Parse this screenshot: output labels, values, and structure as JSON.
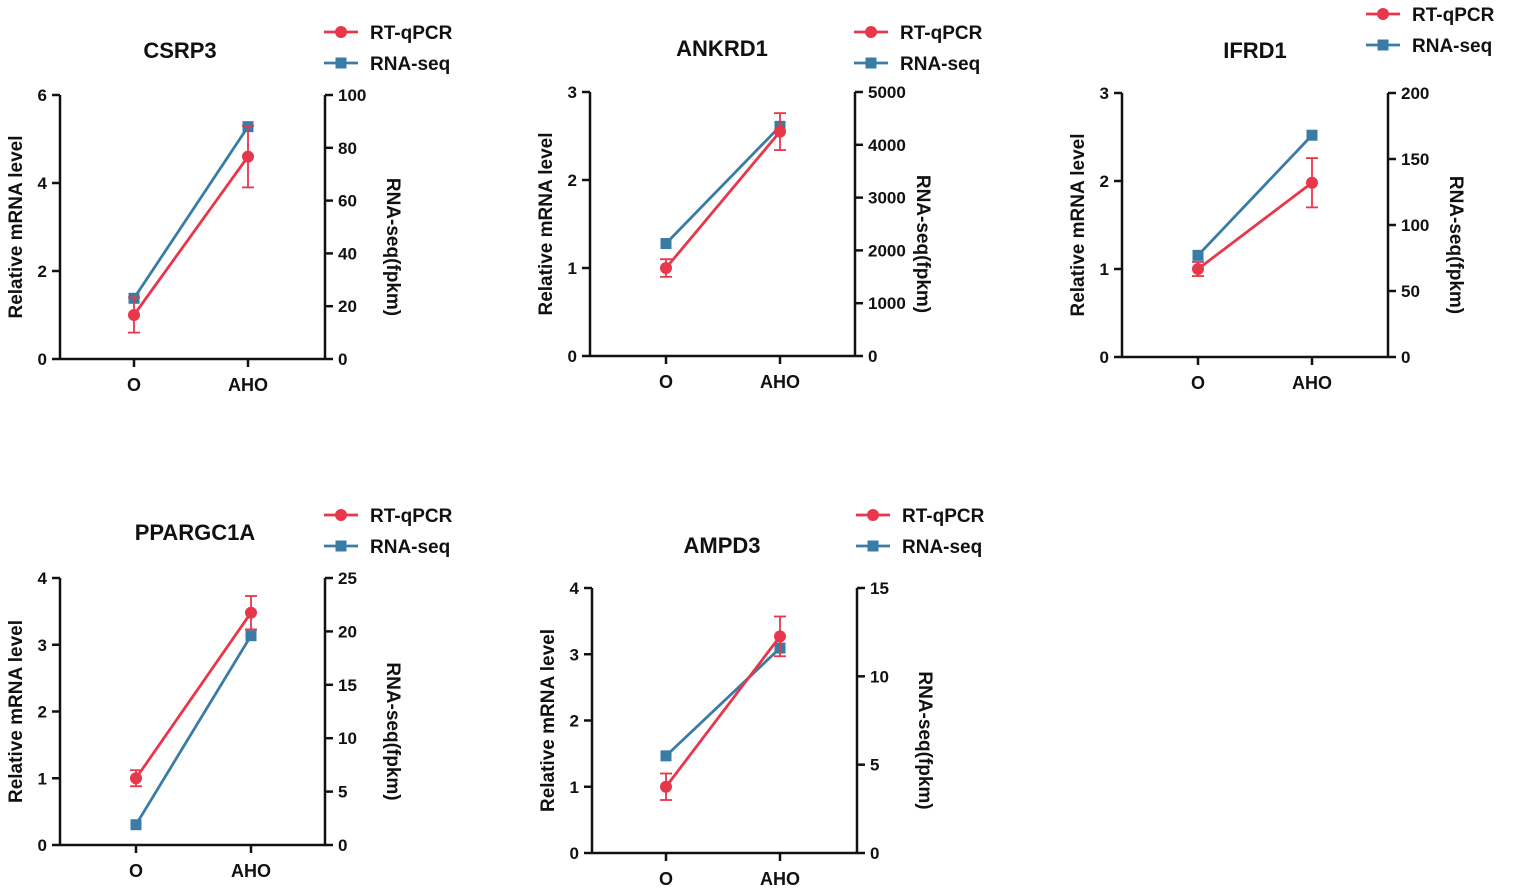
{
  "colors": {
    "rtqpcr": "#e8364a",
    "rnaseq": "#3a7ca5",
    "axis": "#111111"
  },
  "chart_data": [
    {
      "type": "line",
      "title": "CSRP3",
      "categories": [
        "O",
        "AHO"
      ],
      "ylabel": "Relative mRNA level",
      "y2label": "RNA-seq(fpkm)",
      "ylim": [
        0,
        6
      ],
      "yticks": [
        0,
        2,
        4,
        6
      ],
      "y2lim": [
        0,
        100
      ],
      "y2ticks": [
        0,
        20,
        40,
        60,
        80,
        100
      ],
      "series": [
        {
          "name": "RT-qPCR",
          "axis": "left",
          "values": [
            1.0,
            4.6
          ],
          "errors": [
            0.4,
            0.7
          ]
        },
        {
          "name": "RNA-seq",
          "axis": "right",
          "values": [
            23,
            88
          ]
        }
      ]
    },
    {
      "type": "line",
      "title": "ANKRD1",
      "categories": [
        "O",
        "AHO"
      ],
      "ylabel": "Relative mRNA level",
      "y2label": "RNA-seq(fpkm)",
      "ylim": [
        0,
        3
      ],
      "yticks": [
        0,
        1,
        2,
        3
      ],
      "y2lim": [
        0,
        5000
      ],
      "y2ticks": [
        0,
        1000,
        2000,
        3000,
        4000,
        5000
      ],
      "series": [
        {
          "name": "RT-qPCR",
          "axis": "left",
          "values": [
            1.0,
            2.55
          ],
          "errors": [
            0.1,
            0.21
          ]
        },
        {
          "name": "RNA-seq",
          "axis": "right",
          "values": [
            2130,
            4350
          ]
        }
      ]
    },
    {
      "type": "line",
      "title": "IFRD1",
      "categories": [
        "O",
        "AHO"
      ],
      "ylabel": "Relative mRNA level",
      "y2label": "RNA-seq(fpkm)",
      "ylim": [
        0,
        3
      ],
      "yticks": [
        0,
        1,
        2,
        3
      ],
      "y2lim": [
        0,
        200
      ],
      "y2ticks": [
        0,
        50,
        100,
        150,
        200
      ],
      "series": [
        {
          "name": "RT-qPCR",
          "axis": "left",
          "values": [
            1.0,
            1.98
          ],
          "errors": [
            0.08,
            0.28
          ]
        },
        {
          "name": "RNA-seq",
          "axis": "right",
          "values": [
            77,
            168
          ]
        }
      ]
    },
    {
      "type": "line",
      "title": "PPARGC1A",
      "categories": [
        "O",
        "AHO"
      ],
      "ylabel": "Relative mRNA level",
      "y2label": "RNA-seq(fpkm)",
      "ylim": [
        0,
        4
      ],
      "yticks": [
        0,
        1,
        2,
        3,
        4
      ],
      "y2lim": [
        0,
        25
      ],
      "y2ticks": [
        0,
        5,
        10,
        15,
        20,
        25
      ],
      "series": [
        {
          "name": "RT-qPCR",
          "axis": "left",
          "values": [
            1.0,
            3.48
          ],
          "errors": [
            0.12,
            0.25
          ]
        },
        {
          "name": "RNA-seq",
          "axis": "right",
          "values": [
            1.9,
            19.6
          ]
        }
      ]
    },
    {
      "type": "line",
      "title": "AMPD3",
      "categories": [
        "O",
        "AHO"
      ],
      "ylabel": "Relative mRNA level",
      "y2label": "RNA-seq(fpkm)",
      "ylim": [
        0,
        4
      ],
      "yticks": [
        0,
        1,
        2,
        3,
        4
      ],
      "y2lim": [
        0,
        15
      ],
      "y2ticks": [
        0,
        5,
        10,
        15
      ],
      "series": [
        {
          "name": "RT-qPCR",
          "axis": "left",
          "values": [
            1.0,
            3.27
          ],
          "errors": [
            0.2,
            0.3
          ]
        },
        {
          "name": "RNA-seq",
          "axis": "right",
          "values": [
            5.5,
            11.6
          ]
        }
      ]
    }
  ]
}
